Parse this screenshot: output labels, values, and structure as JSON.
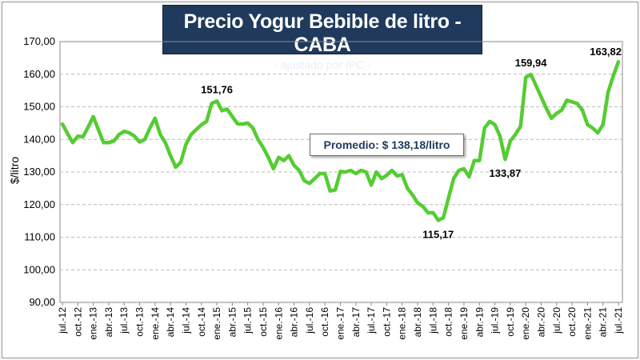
{
  "chart_data": {
    "type": "line",
    "title": "Precio Yogur Bebible de litro - CABA",
    "subtitle": "- ajustado por IPC -",
    "ylabel": "$/litro",
    "xlabel": "",
    "ylim": [
      90,
      170
    ],
    "yticks": [
      "90,00",
      "100,00",
      "110,00",
      "120,00",
      "130,00",
      "140,00",
      "150,00",
      "160,00",
      "170,00"
    ],
    "xtick_labels": [
      "jul.-12",
      "oct.-12",
      "ene.-13",
      "abr.-13",
      "jul.-13",
      "oct.-13",
      "ene.-14",
      "abr.-14",
      "jul.-14",
      "oct.-14",
      "ene.-15",
      "abr.-15",
      "jul.-15",
      "oct.-15",
      "ene.-16",
      "abr.-16",
      "jul.-16",
      "oct.-16",
      "ene.-17",
      "abr.-17",
      "jul.-17",
      "oct.-17",
      "ene.-18",
      "abr.-18",
      "jul.-18",
      "oct.-18",
      "ene.-19",
      "abr.-19",
      "jul.-19",
      "oct.-19",
      "ene.-20",
      "abr.-20",
      "jul.-20",
      "oct.-20",
      "ene.-21",
      "abr.-21",
      "jul.-21"
    ],
    "grid": true,
    "line_color": "#55cc33",
    "series": [
      {
        "values": [
          144.7,
          141.8,
          139.0,
          141.0,
          140.8,
          143.8,
          147.0,
          143.0,
          139.0,
          139.0,
          139.5,
          141.5,
          142.5,
          142.0,
          141.0,
          139.2,
          140.0,
          143.5,
          146.5,
          141.5,
          139.0,
          135.0,
          131.5,
          133.0,
          138.5,
          141.5,
          143.0,
          144.5,
          145.5,
          151.0,
          151.76,
          148.8,
          149.3,
          147.0,
          144.8,
          144.7,
          145.0,
          143.5,
          140.0,
          137.5,
          134.5,
          131.0,
          134.5,
          133.5,
          135.0,
          132.0,
          130.5,
          127.3,
          126.5,
          128.0,
          129.5,
          129.5,
          124.2,
          124.5,
          130.2,
          130.0,
          130.5,
          129.5,
          130.5,
          130.0,
          126.0,
          130.0,
          128.0,
          129.0,
          130.5,
          128.8,
          129.2,
          125.0,
          123.0,
          120.5,
          119.5,
          117.5,
          117.5,
          115.17,
          116.0,
          122.0,
          128.0,
          130.5,
          131.0,
          128.5,
          133.5,
          133.5,
          143.5,
          145.5,
          144.5,
          141.0,
          133.87,
          139.5,
          141.5,
          144.0,
          159.0,
          159.94,
          156.5,
          153.0,
          149.5,
          146.5,
          148.0,
          149.0,
          152.0,
          151.5,
          151.0,
          149.0,
          144.5,
          143.5,
          142.0,
          144.5,
          154.5,
          159.5,
          163.82
        ]
      }
    ],
    "annotations": [
      {
        "label": "151,76",
        "value": 151.76
      },
      {
        "label": "115,17",
        "value": 115.17
      },
      {
        "label": "133,87",
        "value": 133.87
      },
      {
        "label": "159,94",
        "value": 159.94
      },
      {
        "label": "163,82",
        "value": 163.82
      }
    ],
    "average_label": "Promedio: $ 138,18/litro"
  }
}
